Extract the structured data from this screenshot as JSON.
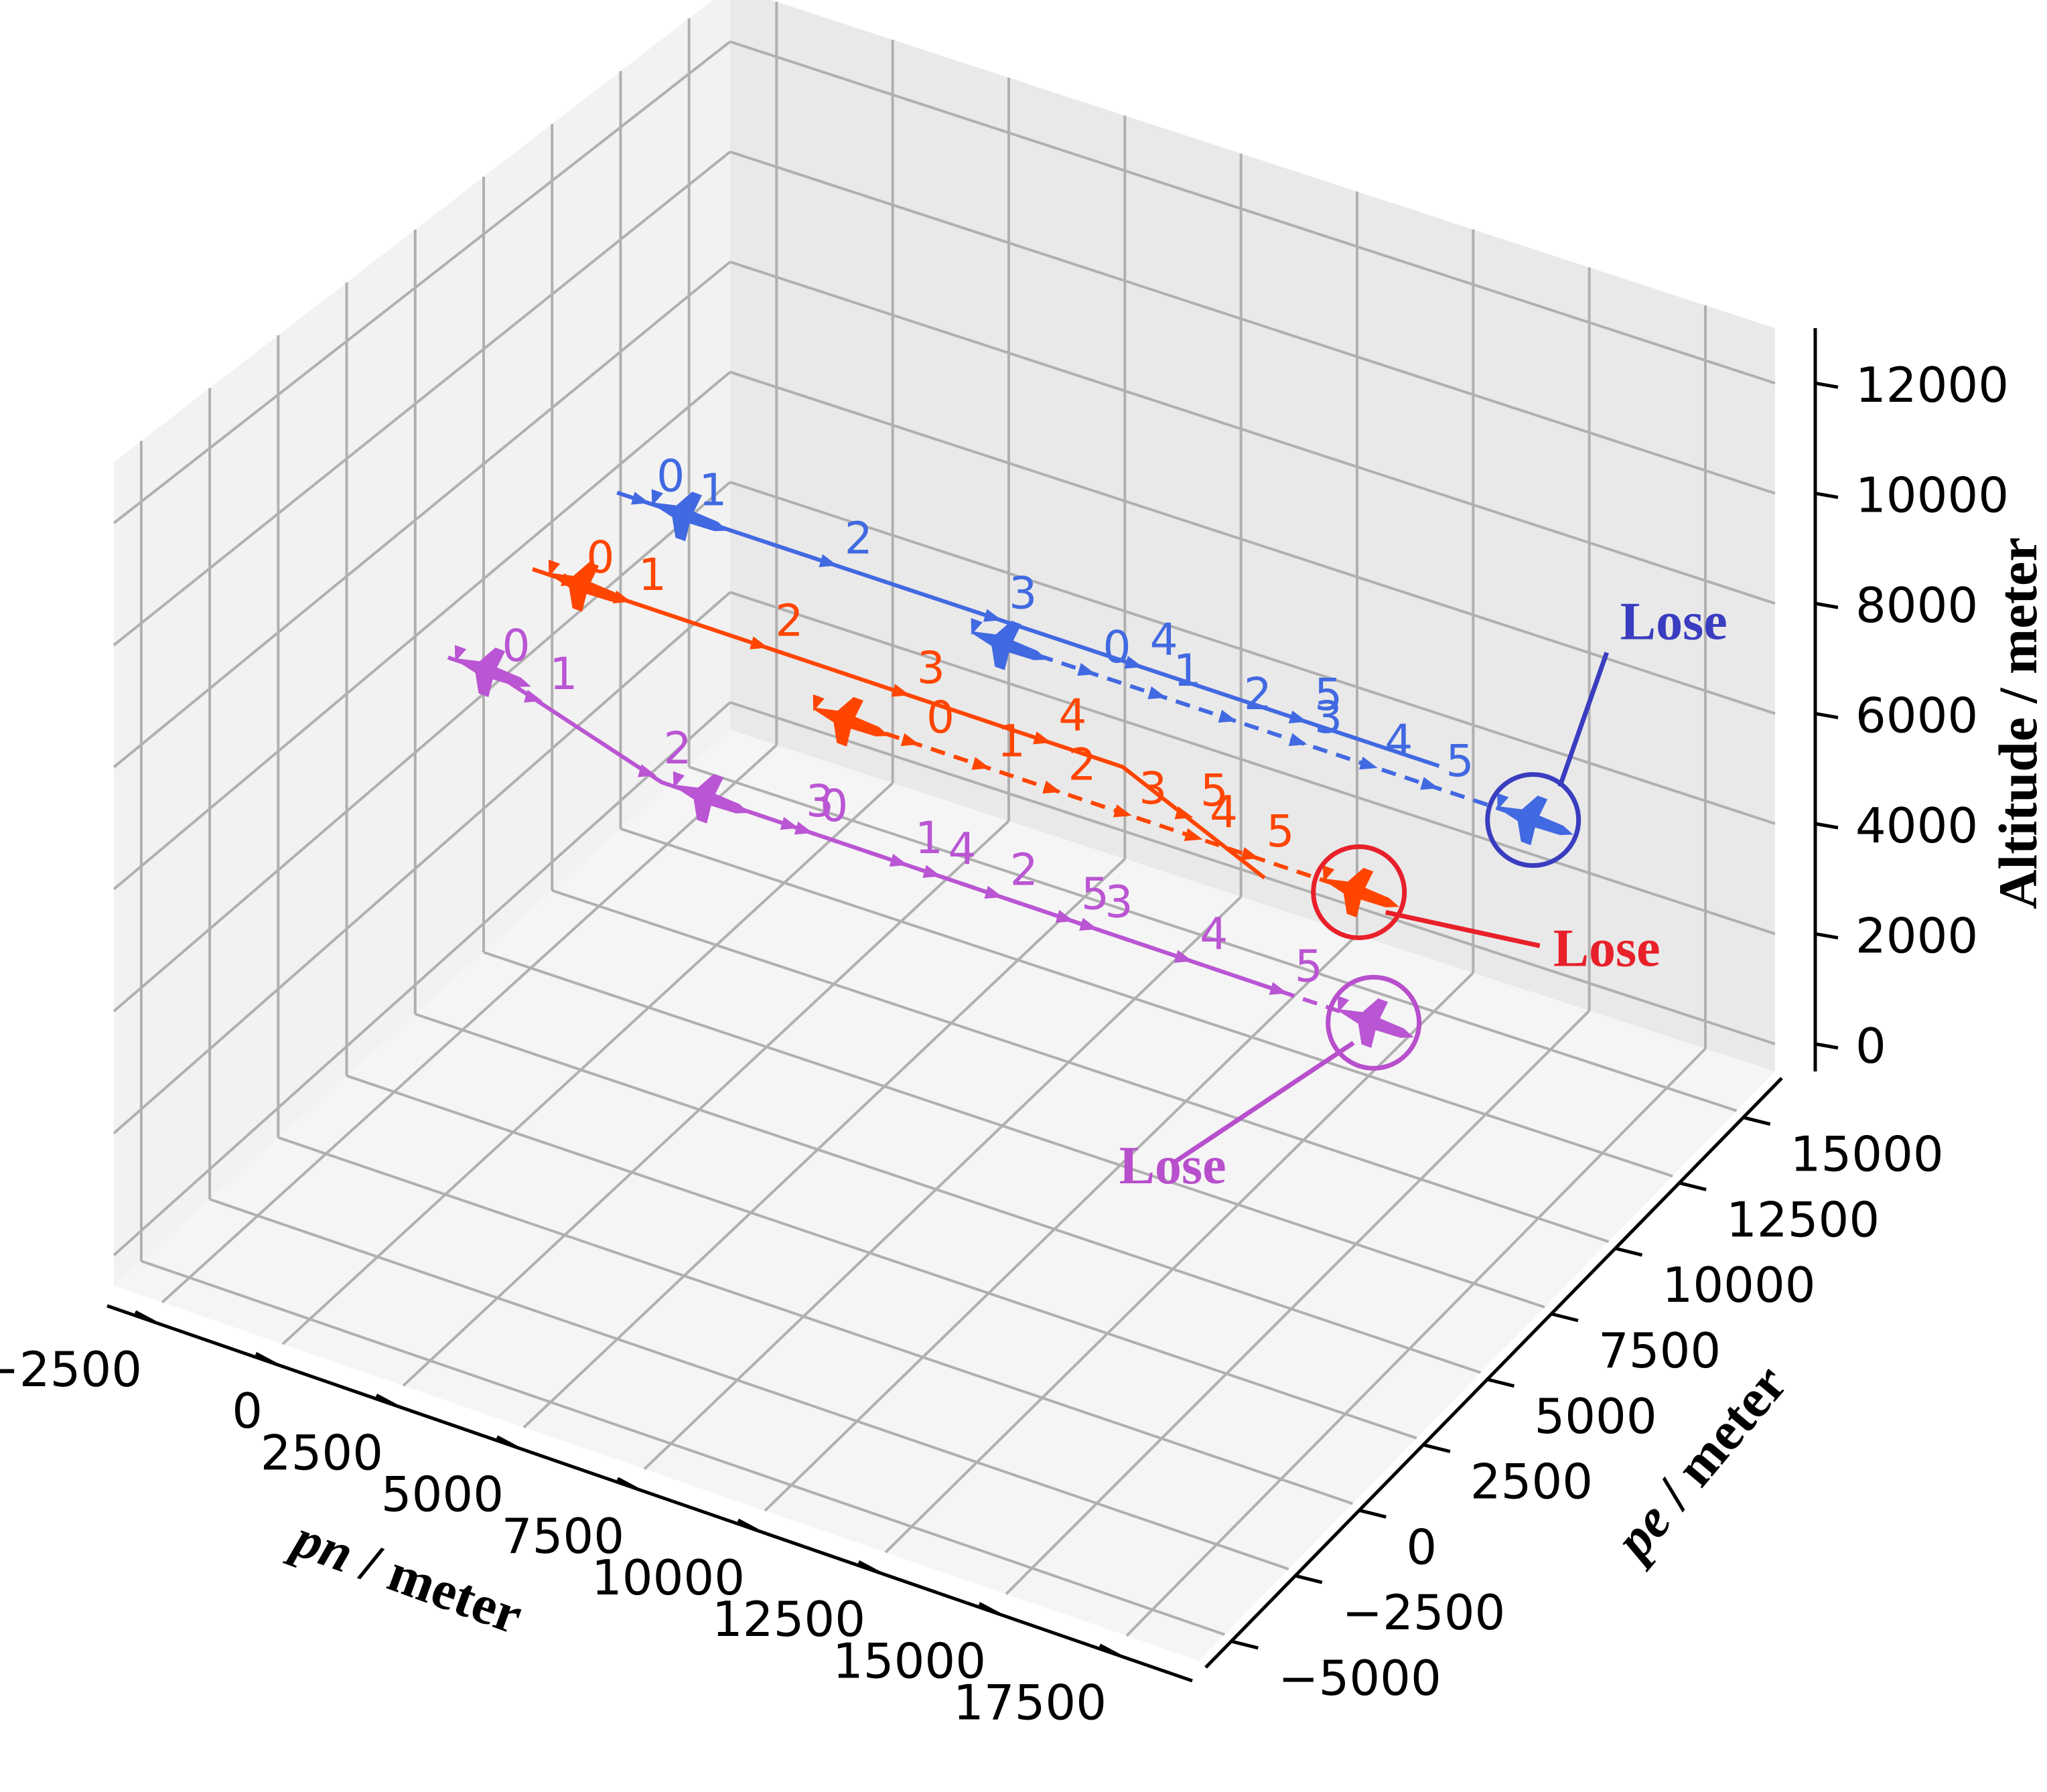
{
  "chart_data": {
    "type": "line",
    "projection": "3d",
    "grid": true,
    "axes": {
      "x": {
        "label_prefix": "pn",
        "label_suffix": " / meter",
        "ticks": [
          -2500,
          0,
          2500,
          5000,
          7500,
          10000,
          12500,
          15000,
          17500
        ],
        "tick_labels": [
          "−2500",
          "0",
          "2500",
          "5000",
          "7500",
          "10000",
          "12500",
          "15000",
          "17500"
        ],
        "lim": [
          -3500,
          19000
        ]
      },
      "y": {
        "label_prefix": "pe",
        "label_suffix": " / meter",
        "ticks": [
          -5000,
          -2500,
          0,
          2500,
          5000,
          7500,
          10000,
          12500,
          15000
        ],
        "tick_labels": [
          "−5000",
          "−2500",
          "0",
          "2500",
          "5000",
          "7500",
          "10000",
          "12500",
          "15000"
        ],
        "lim": [
          -6000,
          16500
        ]
      },
      "z": {
        "label": "Altitude / meter",
        "ticks": [
          0,
          2000,
          4000,
          6000,
          8000,
          10000,
          12000
        ],
        "tick_labels": [
          "0",
          "2000",
          "4000",
          "6000",
          "8000",
          "10000",
          "12000"
        ],
        "lim": [
          -500,
          13000
        ]
      }
    },
    "series": [
      {
        "color": "#4169e1",
        "style": "solid",
        "x": [
          -2000,
          -1200,
          2500,
          6000,
          9000,
          12500,
          15500
        ],
        "y": [
          9800,
          9800,
          9800,
          9800,
          9800,
          9800,
          9800
        ],
        "z": [
          7000,
          7000,
          7000,
          7000,
          7000,
          7000,
          7000
        ],
        "marks": [
          [
            -1500,
            "0"
          ],
          [
            -600,
            "1"
          ],
          [
            2500,
            "2"
          ],
          [
            6000,
            "3"
          ],
          [
            9000,
            "4"
          ],
          [
            12500,
            "5"
          ]
        ],
        "aircraft_at": -500
      },
      {
        "color": "#4169e1",
        "style": "dashed",
        "x": [
          6000,
          8000,
          9500,
          11000,
          12500,
          14000,
          15500,
          17500
        ],
        "y": [
          9800,
          9800,
          9800,
          9800,
          9800,
          9800,
          9800,
          9800
        ],
        "z": [
          6600,
          6600,
          6600,
          6600,
          6600,
          6600,
          6600,
          6600
        ],
        "marks": [
          [
            8000,
            "0"
          ],
          [
            9500,
            "1"
          ],
          [
            11000,
            "2"
          ],
          [
            12500,
            "3"
          ],
          [
            14000,
            "4"
          ],
          [
            15300,
            "5"
          ]
        ],
        "aircraft_at": 6300
      },
      {
        "color": "#ff4500",
        "style": "solid",
        "x": [
          -2000,
          -800,
          1000,
          4000,
          7500,
          10500,
          13500
        ],
        "y": [
          6700,
          6700,
          6700,
          6700,
          6700,
          6700,
          6700
        ],
        "z": [
          6900,
          6900,
          6900,
          6900,
          6900,
          6900,
          5800
        ],
        "marks": [
          [
            -1200,
            "0"
          ],
          [
            -100,
            "1"
          ],
          [
            2800,
            "2"
          ],
          [
            5800,
            "3"
          ],
          [
            8800,
            "4"
          ],
          [
            11800,
            "5"
          ]
        ],
        "aircraft_at": -900
      },
      {
        "color": "#ff4500",
        "style": "dashed",
        "x": [
          4500,
          6000,
          7500,
          9000,
          10500,
          12000,
          13500,
          15500
        ],
        "y": [
          6700,
          6700,
          6700,
          6700,
          6700,
          6700,
          6700,
          6700
        ],
        "z": [
          6100,
          6100,
          6100,
          6100,
          6100,
          6100,
          6100,
          6100
        ],
        "marks": [
          [
            6000,
            "0"
          ],
          [
            7500,
            "1"
          ],
          [
            9000,
            "2"
          ],
          [
            10500,
            "3"
          ],
          [
            12000,
            "4"
          ],
          [
            13200,
            "5"
          ]
        ],
        "aircraft_at": 4700
      },
      {
        "color": "#ba55d3",
        "style": "solid",
        "x": [
          -2000,
          -1000,
          2500,
          5500,
          8500,
          11000,
          13500,
          15500
        ],
        "y": [
          3600,
          3600,
          3600,
          3600,
          3600,
          3600,
          3600,
          3600
        ],
        "z": [
          6600,
          6600,
          5700,
          5700,
          5700,
          5700,
          5700,
          5700
        ],
        "marks": [
          [
            -1200,
            "0"
          ],
          [
            -200,
            "1"
          ],
          [
            2200,
            "2"
          ],
          [
            5200,
            "3"
          ],
          [
            8200,
            "4"
          ],
          [
            11000,
            "5"
          ]
        ],
        "aircraft_at": -1100
      },
      {
        "color": "#ba55d3",
        "style": "dashed",
        "x": [
          3500,
          5500,
          7500,
          9500,
          11500,
          13500,
          15500,
          17500
        ],
        "y": [
          3600,
          3600,
          3600,
          3600,
          3600,
          3600,
          3600,
          3600
        ],
        "z": [
          5700,
          5700,
          5700,
          5700,
          5700,
          5700,
          5700,
          5700
        ],
        "marks": [
          [
            5500,
            "0"
          ],
          [
            7500,
            "1"
          ],
          [
            9500,
            "2"
          ],
          [
            11500,
            "3"
          ],
          [
            13500,
            "4"
          ],
          [
            15500,
            "5"
          ]
        ],
        "aircraft_at": 3500
      }
    ],
    "annotations": [
      {
        "text": "Lose",
        "color": "#3a3dbf",
        "target_series": 1
      },
      {
        "text": "Lose",
        "color": "#e8202a",
        "target_series": 3
      },
      {
        "text": "Lose",
        "color": "#b84fcc",
        "target_series": 5
      }
    ]
  }
}
